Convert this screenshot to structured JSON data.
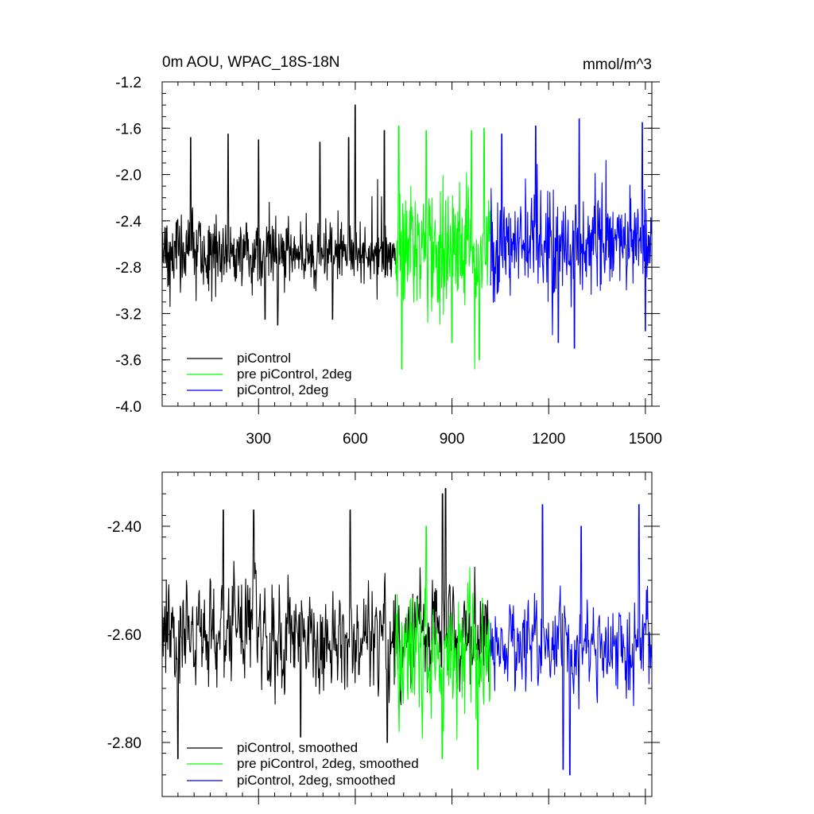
{
  "chart_data": [
    {
      "type": "line",
      "title": "0m AOU, WPAC_18S-18N",
      "units": "mmol/m^3",
      "xlim": [
        1,
        1520
      ],
      "ylim": [
        -4.0,
        -1.2
      ],
      "x_ticks": [
        300,
        600,
        900,
        1200,
        1500
      ],
      "x_tick_labels": [
        "300",
        "600",
        "900",
        "1200",
        "1500"
      ],
      "y_ticks": [
        -1.2,
        -1.6,
        -2.0,
        -2.4,
        -2.8,
        -3.2,
        -3.6,
        -4.0
      ],
      "y_tick_labels": [
        "-1.2",
        "-1.6",
        "-2.0",
        "-2.4",
        "-2.8",
        "-3.2",
        "-3.6",
        "-4.0"
      ],
      "legend_position": "bottom-left",
      "series": [
        {
          "name": "piControl",
          "color": "#000000",
          "x_range": [
            1,
            725
          ],
          "mean": -2.68,
          "spread": 0.2,
          "peaks": [
            [
              90,
              -1.68
            ],
            [
              205,
              -1.65
            ],
            [
              300,
              -1.7
            ],
            [
              490,
              -1.72
            ],
            [
              580,
              -1.68
            ],
            [
              600,
              -1.4
            ],
            [
              690,
              -1.62
            ]
          ],
          "troughs": [
            [
              320,
              -3.25
            ],
            [
              360,
              -3.3
            ],
            [
              530,
              -3.25
            ]
          ]
        },
        {
          "name": "pre piControl, 2deg",
          "color": "#00ff00",
          "x_range": [
            725,
            1020
          ],
          "mean": -2.62,
          "spread": 0.35,
          "peaks": [
            [
              735,
              -1.58
            ],
            [
              820,
              -1.62
            ],
            [
              900,
              -1.75
            ],
            [
              960,
              -1.62
            ],
            [
              1000,
              -1.6
            ]
          ],
          "troughs": [
            [
              745,
              -3.68
            ],
            [
              900,
              -3.45
            ],
            [
              985,
              -3.6
            ]
          ]
        },
        {
          "name": "piControl, 2deg",
          "color": "#0000ff",
          "x_range": [
            1020,
            1520
          ],
          "mean": -2.62,
          "spread": 0.3,
          "peaks": [
            [
              1055,
              -1.65
            ],
            [
              1160,
              -1.58
            ],
            [
              1295,
              -1.52
            ],
            [
              1490,
              -1.55
            ]
          ],
          "troughs": [
            [
              1230,
              -3.45
            ],
            [
              1280,
              -3.5
            ],
            [
              1500,
              -3.35
            ]
          ]
        }
      ]
    },
    {
      "type": "line",
      "xlim": [
        1,
        1520
      ],
      "ylim": [
        -2.9,
        -2.3
      ],
      "x_ticks": [
        300,
        600,
        900,
        1200,
        1500
      ],
      "y_ticks": [
        -2.4,
        -2.6,
        -2.8
      ],
      "y_tick_labels": [
        "-2.40",
        "-2.60",
        "-2.80"
      ],
      "legend_position": "bottom-left",
      "series": [
        {
          "name": "piControl, smoothed",
          "color": "#000000",
          "x_range": [
            1,
            1020
          ],
          "mean": -2.6,
          "spread": 0.06,
          "peaks": [
            [
              190,
              -2.37
            ],
            [
              285,
              -2.37
            ],
            [
              585,
              -2.37
            ],
            [
              880,
              -2.33
            ],
            [
              870,
              -2.34
            ]
          ],
          "troughs": [
            [
              50,
              -2.83
            ],
            [
              430,
              -2.79
            ],
            [
              700,
              -2.8
            ]
          ]
        },
        {
          "name": "pre piControl, 2deg, smoothed",
          "color": "#00ff00",
          "x_range": [
            725,
            1020
          ],
          "mean": -2.63,
          "spread": 0.07,
          "peaks": [
            [
              820,
              -2.4
            ],
            [
              870,
              -2.43
            ]
          ],
          "troughs": [
            [
              870,
              -2.83
            ],
            [
              980,
              -2.85
            ]
          ]
        },
        {
          "name": "piControl, 2deg, smoothed",
          "color": "#0000ff",
          "x_range": [
            1020,
            1520
          ],
          "mean": -2.62,
          "spread": 0.05,
          "peaks": [
            [
              1180,
              -2.36
            ],
            [
              1300,
              -2.4
            ],
            [
              1480,
              -2.36
            ]
          ],
          "troughs": [
            [
              1245,
              -2.85
            ],
            [
              1265,
              -2.86
            ]
          ]
        }
      ]
    }
  ]
}
